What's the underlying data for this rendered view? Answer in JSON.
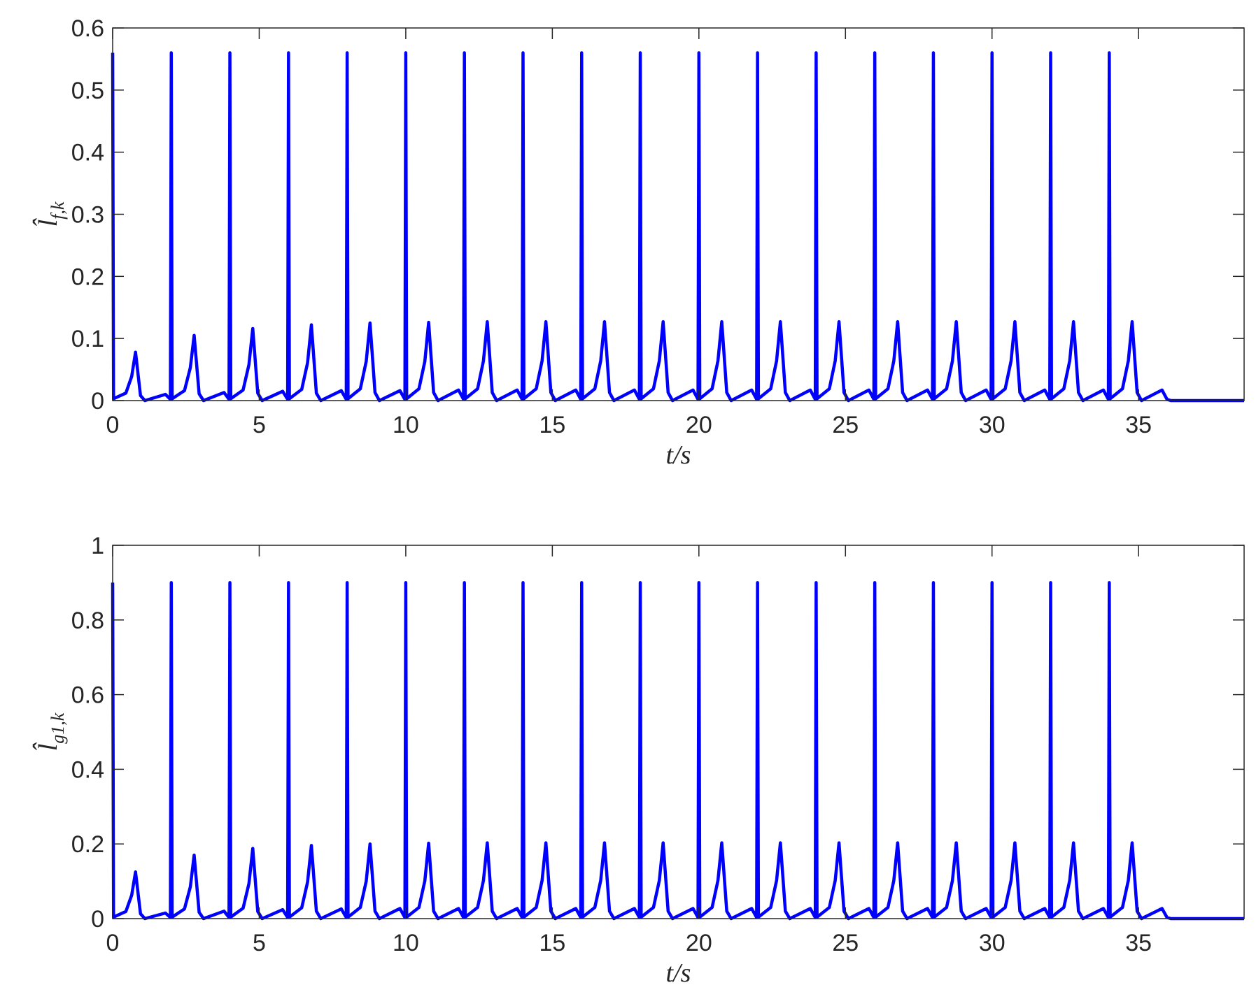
{
  "chart_data": [
    {
      "type": "line",
      "xlabel": "t/s",
      "ylabel": {
        "base": "l̂",
        "sub": "f,k"
      },
      "xlim": [
        0,
        38.6
      ],
      "xticks": [
        0,
        5,
        10,
        15,
        20,
        25,
        30,
        35
      ],
      "ylim": [
        0,
        0.6
      ],
      "yticks": [
        0,
        0.1,
        0.2,
        0.3,
        0.4,
        0.5,
        0.6
      ],
      "x": [
        0,
        0.03,
        0.45,
        0.65,
        0.78,
        0.95,
        1.1,
        1.8,
        1.97,
        2,
        2.03,
        2.45,
        2.65,
        2.78,
        2.95,
        3.1,
        3.8,
        3.97,
        4,
        4.03,
        4.45,
        4.65,
        4.78,
        4.95,
        5.1,
        5.8,
        5.97,
        6,
        6.03,
        6.45,
        6.65,
        6.78,
        6.95,
        7.1,
        7.8,
        7.97,
        8,
        8.03,
        8.45,
        8.65,
        8.78,
        8.95,
        9.1,
        9.8,
        9.97,
        10,
        10.03,
        10.45,
        10.65,
        10.78,
        10.95,
        11.1,
        11.8,
        11.97,
        12,
        12.03,
        12.45,
        12.65,
        12.78,
        12.95,
        13.1,
        13.8,
        13.97,
        14,
        14.03,
        14.45,
        14.65,
        14.78,
        14.95,
        15.1,
        15.8,
        15.97,
        16,
        16.03,
        16.45,
        16.65,
        16.78,
        16.95,
        17.1,
        17.8,
        17.97,
        18,
        18.03,
        18.45,
        18.65,
        18.78,
        18.95,
        19.1,
        19.8,
        19.97,
        20,
        20.03,
        20.45,
        20.65,
        20.78,
        20.95,
        21.1,
        21.8,
        21.97,
        22,
        22.03,
        22.45,
        22.65,
        22.78,
        22.95,
        23.1,
        23.8,
        23.97,
        24,
        24.03,
        24.45,
        24.65,
        24.78,
        24.95,
        25.1,
        25.8,
        25.97,
        26,
        26.03,
        26.45,
        26.65,
        26.78,
        26.95,
        27.1,
        27.8,
        27.97,
        28,
        28.03,
        28.45,
        28.65,
        28.78,
        28.95,
        29.1,
        29.8,
        29.97,
        30,
        30.03,
        30.45,
        30.65,
        30.78,
        30.95,
        31.1,
        31.8,
        31.97,
        32,
        32.03,
        32.45,
        32.65,
        32.78,
        32.95,
        33.1,
        33.8,
        33.97,
        34,
        34.03,
        34.45,
        34.65,
        34.78,
        34.95,
        35.1,
        35.8,
        35.97,
        36.1,
        38.6
      ],
      "series": [
        {
          "color": "#0000ff",
          "values": [
            0.56,
            0.003,
            0.012,
            0.039,
            0.078,
            0.008,
            0,
            0.01,
            0.002,
            0.56,
            0.003,
            0.016,
            0.053,
            0.105,
            0.011,
            0,
            0.013,
            0.002,
            0.56,
            0.003,
            0.017,
            0.058,
            0.116,
            0.012,
            0,
            0.015,
            0.002,
            0.56,
            0.003,
            0.018,
            0.061,
            0.122,
            0.012,
            0,
            0.016,
            0.002,
            0.56,
            0.003,
            0.019,
            0.063,
            0.125,
            0.013,
            0,
            0.016,
            0.002,
            0.56,
            0.003,
            0.019,
            0.063,
            0.126,
            0.013,
            0,
            0.017,
            0.002,
            0.56,
            0.003,
            0.019,
            0.064,
            0.127,
            0.013,
            0,
            0.017,
            0.002,
            0.56,
            0.003,
            0.019,
            0.064,
            0.127,
            0.013,
            0,
            0.017,
            0.002,
            0.56,
            0.003,
            0.019,
            0.064,
            0.127,
            0.013,
            0,
            0.017,
            0.002,
            0.56,
            0.003,
            0.019,
            0.064,
            0.127,
            0.013,
            0,
            0.017,
            0.002,
            0.56,
            0.003,
            0.019,
            0.064,
            0.127,
            0.013,
            0,
            0.017,
            0.002,
            0.56,
            0.003,
            0.019,
            0.064,
            0.127,
            0.013,
            0,
            0.017,
            0.002,
            0.56,
            0.003,
            0.019,
            0.064,
            0.127,
            0.013,
            0,
            0.017,
            0.002,
            0.56,
            0.003,
            0.019,
            0.064,
            0.127,
            0.013,
            0,
            0.017,
            0.002,
            0.56,
            0.003,
            0.019,
            0.064,
            0.127,
            0.013,
            0,
            0.017,
            0.002,
            0.56,
            0.003,
            0.019,
            0.064,
            0.127,
            0.013,
            0,
            0.017,
            0.002,
            0.56,
            0.003,
            0.019,
            0.064,
            0.127,
            0.013,
            0,
            0.017,
            0.002,
            0.56,
            0.003,
            0.019,
            0.064,
            0.127,
            0.013,
            0,
            0.017,
            0.002,
            0,
            0
          ]
        }
      ]
    },
    {
      "type": "line",
      "xlabel": "t/s",
      "ylabel": {
        "base": "l̂",
        "sub": "g1,k"
      },
      "xlim": [
        0,
        38.6
      ],
      "xticks": [
        0,
        5,
        10,
        15,
        20,
        25,
        30,
        35
      ],
      "ylim": [
        0,
        1
      ],
      "yticks": [
        0,
        0.2,
        0.4,
        0.6,
        0.8,
        1
      ],
      "x": [
        0,
        0.03,
        0.45,
        0.65,
        0.78,
        0.95,
        1.1,
        1.8,
        1.97,
        2,
        2.03,
        2.45,
        2.65,
        2.78,
        2.95,
        3.1,
        3.8,
        3.97,
        4,
        4.03,
        4.45,
        4.65,
        4.78,
        4.95,
        5.1,
        5.8,
        5.97,
        6,
        6.03,
        6.45,
        6.65,
        6.78,
        6.95,
        7.1,
        7.8,
        7.97,
        8,
        8.03,
        8.45,
        8.65,
        8.78,
        8.95,
        9.1,
        9.8,
        9.97,
        10,
        10.03,
        10.45,
        10.65,
        10.78,
        10.95,
        11.1,
        11.8,
        11.97,
        12,
        12.03,
        12.45,
        12.65,
        12.78,
        12.95,
        13.1,
        13.8,
        13.97,
        14,
        14.03,
        14.45,
        14.65,
        14.78,
        14.95,
        15.1,
        15.8,
        15.97,
        16,
        16.03,
        16.45,
        16.65,
        16.78,
        16.95,
        17.1,
        17.8,
        17.97,
        18,
        18.03,
        18.45,
        18.65,
        18.78,
        18.95,
        19.1,
        19.8,
        19.97,
        20,
        20.03,
        20.45,
        20.65,
        20.78,
        20.95,
        21.1,
        21.8,
        21.97,
        22,
        22.03,
        22.45,
        22.65,
        22.78,
        22.95,
        23.1,
        23.8,
        23.97,
        24,
        24.03,
        24.45,
        24.65,
        24.78,
        24.95,
        25.1,
        25.8,
        25.97,
        26,
        26.03,
        26.45,
        26.65,
        26.78,
        26.95,
        27.1,
        27.8,
        27.97,
        28,
        28.03,
        28.45,
        28.65,
        28.78,
        28.95,
        29.1,
        29.8,
        29.97,
        30,
        30.03,
        30.45,
        30.65,
        30.78,
        30.95,
        31.1,
        31.8,
        31.97,
        32,
        32.03,
        32.45,
        32.65,
        32.78,
        32.95,
        33.1,
        33.8,
        33.97,
        34,
        34.03,
        34.45,
        34.65,
        34.78,
        34.95,
        35.1,
        35.8,
        35.97,
        36.1,
        38.6
      ],
      "series": [
        {
          "color": "#0000ff",
          "values": [
            0.9,
            0.004,
            0.019,
            0.063,
            0.125,
            0.013,
            0,
            0.015,
            0.003,
            0.9,
            0.004,
            0.026,
            0.085,
            0.17,
            0.017,
            0,
            0.02,
            0.003,
            0.9,
            0.004,
            0.028,
            0.094,
            0.188,
            0.019,
            0,
            0.024,
            0.003,
            0.9,
            0.004,
            0.029,
            0.098,
            0.196,
            0.02,
            0,
            0.026,
            0.003,
            0.9,
            0.004,
            0.03,
            0.1,
            0.2,
            0.02,
            0,
            0.027,
            0.003,
            0.9,
            0.004,
            0.03,
            0.101,
            0.202,
            0.02,
            0,
            0.027,
            0.003,
            0.9,
            0.004,
            0.03,
            0.102,
            0.203,
            0.02,
            0,
            0.027,
            0.003,
            0.9,
            0.004,
            0.03,
            0.102,
            0.203,
            0.02,
            0,
            0.027,
            0.003,
            0.9,
            0.004,
            0.03,
            0.102,
            0.203,
            0.02,
            0,
            0.027,
            0.003,
            0.9,
            0.004,
            0.03,
            0.102,
            0.203,
            0.02,
            0,
            0.027,
            0.003,
            0.9,
            0.004,
            0.03,
            0.102,
            0.203,
            0.02,
            0,
            0.027,
            0.003,
            0.9,
            0.004,
            0.03,
            0.102,
            0.203,
            0.02,
            0,
            0.027,
            0.003,
            0.9,
            0.004,
            0.03,
            0.102,
            0.203,
            0.02,
            0,
            0.027,
            0.003,
            0.9,
            0.004,
            0.03,
            0.102,
            0.203,
            0.02,
            0,
            0.027,
            0.003,
            0.9,
            0.004,
            0.03,
            0.102,
            0.203,
            0.02,
            0,
            0.027,
            0.003,
            0.9,
            0.004,
            0.03,
            0.102,
            0.203,
            0.02,
            0,
            0.027,
            0.003,
            0.9,
            0.004,
            0.03,
            0.102,
            0.203,
            0.02,
            0,
            0.027,
            0.003,
            0.9,
            0.004,
            0.03,
            0.102,
            0.203,
            0.02,
            0,
            0.027,
            0.003,
            0,
            0
          ]
        }
      ]
    }
  ]
}
